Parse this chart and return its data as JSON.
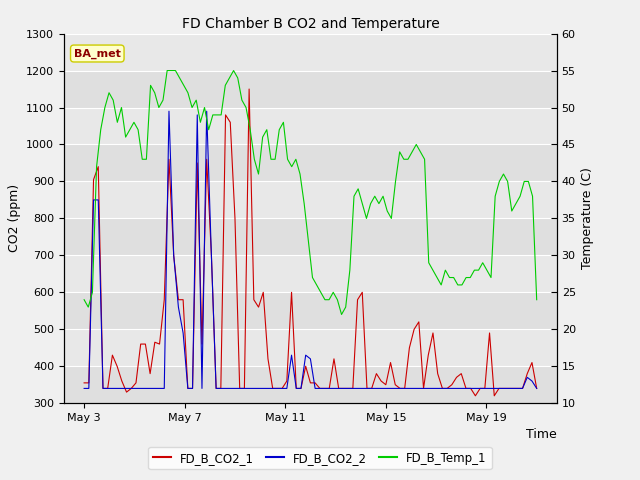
{
  "title": "FD Chamber B CO2 and Temperature",
  "xlabel": "Time",
  "ylabel_left": "CO2 (ppm)",
  "ylabel_right": "Temperature (C)",
  "ylim_left": [
    300,
    1300
  ],
  "ylim_right": [
    10,
    60
  ],
  "yticks_left": [
    300,
    400,
    500,
    600,
    700,
    800,
    900,
    1000,
    1100,
    1200,
    1300
  ],
  "yticks_right": [
    10,
    15,
    20,
    25,
    30,
    35,
    40,
    45,
    50,
    55,
    60
  ],
  "xtick_labels": [
    "May 3",
    "May 7",
    "May 11",
    "May 15",
    "May 19"
  ],
  "xtick_positions": [
    2,
    6,
    10,
    14,
    18
  ],
  "annotation_text": "BA_met",
  "annotation_color": "#8B0000",
  "annotation_bg": "#FFFFCC",
  "annotation_edge": "#CCCC00",
  "fig_bg": "#E8E8E8",
  "plot_bg": "#E8E8E8",
  "plot_area_light": "#F0F0F0",
  "color_co2_1": "#CC0000",
  "color_co2_2": "#0000CC",
  "color_temp": "#00CC00",
  "legend_labels": [
    "FD_B_CO2_1",
    "FD_B_CO2_2",
    "FD_B_Temp_1"
  ],
  "co2_1": [
    355,
    355,
    905,
    940,
    340,
    340,
    430,
    400,
    360,
    330,
    340,
    355,
    460,
    460,
    380,
    465,
    460,
    580,
    960,
    700,
    580,
    580,
    340,
    340,
    950,
    460,
    960,
    700,
    340,
    340,
    1080,
    1060,
    800,
    340,
    340,
    1150,
    580,
    560,
    600,
    420,
    340,
    340,
    340,
    360,
    600,
    340,
    340,
    400,
    355,
    355,
    340,
    340,
    340,
    420,
    340,
    340,
    340,
    340,
    580,
    600,
    340,
    340,
    380,
    360,
    350,
    410,
    350,
    340,
    340,
    450,
    500,
    520,
    340,
    430,
    490,
    380,
    340,
    340,
    350,
    370,
    380,
    340,
    340,
    320,
    340,
    340,
    490,
    320,
    340,
    340,
    340,
    340,
    340,
    340,
    380,
    410,
    340
  ],
  "co2_2": [
    340,
    340,
    850,
    850,
    340,
    340,
    340,
    340,
    340,
    340,
    340,
    340,
    340,
    340,
    340,
    340,
    340,
    340,
    1090,
    700,
    560,
    490,
    340,
    340,
    1080,
    340,
    1090,
    700,
    340,
    340,
    340,
    340,
    340,
    340,
    340,
    340,
    340,
    340,
    340,
    340,
    340,
    340,
    340,
    340,
    430,
    340,
    340,
    430,
    420,
    340,
    340,
    340,
    340,
    340,
    340,
    340,
    340,
    340,
    340,
    340,
    340,
    340,
    340,
    340,
    340,
    340,
    340,
    340,
    340,
    340,
    340,
    340,
    340,
    340,
    340,
    340,
    340,
    340,
    340,
    340,
    340,
    340,
    340,
    340,
    340,
    340,
    340,
    340,
    340,
    340,
    340,
    340,
    340,
    340,
    370,
    360,
    340
  ],
  "temp": [
    24,
    23,
    25,
    42,
    47,
    50,
    52,
    51,
    48,
    50,
    46,
    47,
    48,
    47,
    43,
    43,
    53,
    52,
    50,
    51,
    55,
    55,
    55,
    54,
    53,
    52,
    50,
    51,
    48,
    50,
    47,
    49,
    49,
    49,
    53,
    54,
    55,
    54,
    51,
    50,
    47,
    43,
    41,
    46,
    47,
    43,
    43,
    47,
    48,
    43,
    42,
    43,
    41,
    37,
    32,
    27,
    26,
    25,
    24,
    24,
    25,
    24,
    22,
    23,
    28,
    38,
    39,
    37,
    35,
    37,
    38,
    37,
    38,
    36,
    35,
    40,
    44,
    43,
    43,
    44,
    45,
    44,
    43,
    29,
    28,
    27,
    26,
    28,
    27,
    27,
    26,
    26,
    27,
    27,
    28,
    28,
    29,
    28,
    27,
    38,
    40,
    41,
    40,
    36,
    37,
    38,
    40,
    40,
    38,
    24
  ]
}
